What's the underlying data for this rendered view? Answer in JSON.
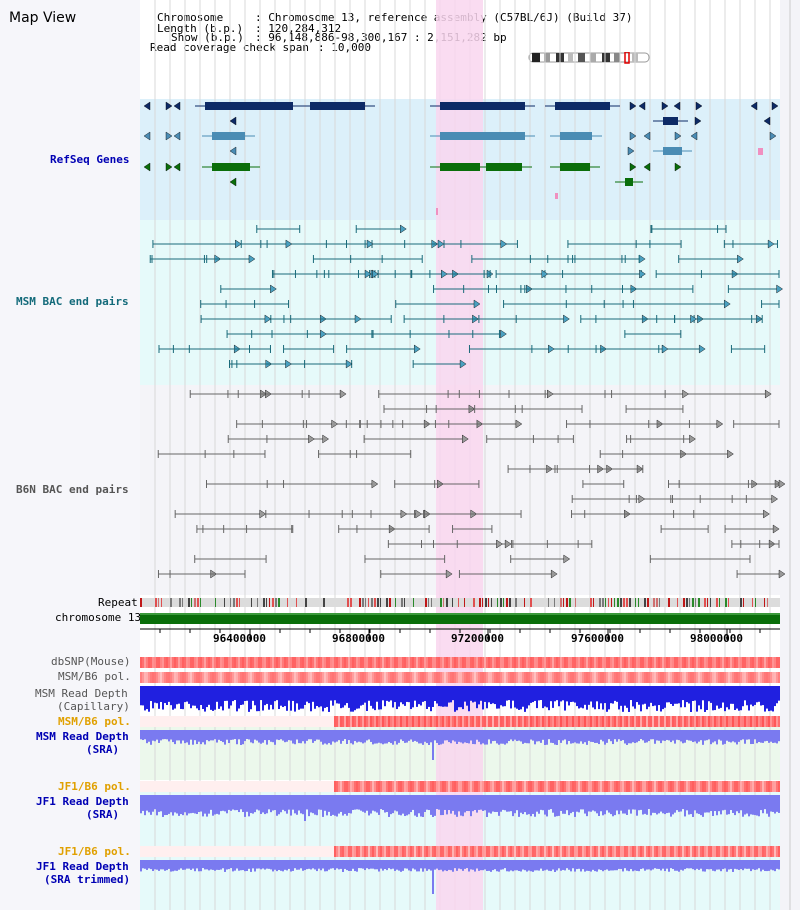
{
  "page": {
    "title": "Map View"
  },
  "info": {
    "chromosome_key": "Chromosome",
    "chromosome_val": ": Chromosome 13, reference assembly (C57BL/6J) (Build 37)",
    "length_key": "Length (b.p.)",
    "length_val": ": 120,284,312",
    "show_key": "Show (b.p.)",
    "show_val": ": 96,148,886-98,300,167 : 2,151,282 bp",
    "coverage_key": "Read coverage check span",
    "coverage_val": ": 10,000"
  },
  "tracks": {
    "refseq": "RefSeq Genes",
    "msm_bac": "MSM BAC end pairs",
    "b6n_bac": "B6N BAC end pairs",
    "repeat": "Repeat",
    "chromosome": "chromosome 13",
    "dbsnp": "dbSNP(Mouse)",
    "msm_b6_pol_1": "MSM/B6 pol.",
    "msm_read_depth_cap": "MSM Read Depth",
    "msm_read_depth_cap_sub": "(Capillary)",
    "msm_b6_pol_2": "MSM/B6 pol.",
    "msm_read_depth_sra": "MSM Read Depth",
    "msm_read_depth_sra_sub": "(SRA)",
    "jf1_b6_pol_1": "JF1/B6 pol.",
    "jf1_read_depth_sra": "JF1 Read Depth",
    "jf1_read_depth_sra_sub": "(SRA)",
    "jf1_b6_pol_2": "JF1/B6 pol.",
    "jf1_read_depth_trim": "JF1 Read Depth",
    "jf1_read_depth_trim_sub": "(SRA trimmed)"
  },
  "axis": {
    "ticks": [
      "96400000",
      "96800000",
      "97200000",
      "97600000",
      "98000000"
    ]
  },
  "colors": {
    "refseq_bg": "#dcf0fa",
    "bac_bg": "#e6fafa",
    "highlight": "#f9d6ef",
    "gene_navy": "#0d2a66",
    "gene_steel": "#4a8cb4",
    "gene_green": "#0a6e0a",
    "bac_teal": "#1a6a7a",
    "bac_gray": "#666666",
    "chrom_green": "#0a6e0a",
    "depth_blue": "#2020e0",
    "depth_light": "#7a7af0"
  }
}
